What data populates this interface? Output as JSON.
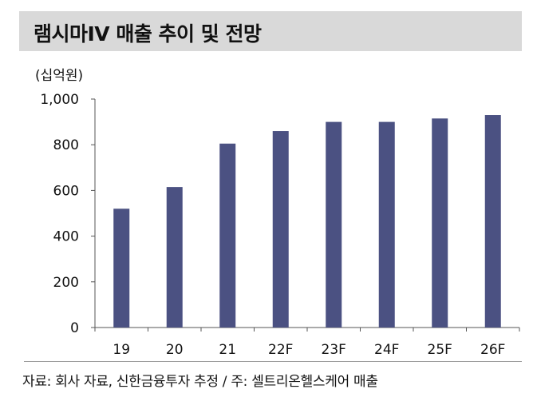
{
  "title": "램시마IV 매출 추이 및 전망",
  "unit_label": "(십억원)",
  "source": "자료: 회사 자료, 신한금융투자 추정 / 주: 셀트리온헬스케어 매출",
  "colors": {
    "bar": "#4b5182",
    "title_bg": "#d9d9d9",
    "axis": "#555555"
  },
  "chart_data": {
    "type": "bar",
    "categories": [
      "19",
      "20",
      "21",
      "22F",
      "23F",
      "24F",
      "25F",
      "26F"
    ],
    "values": [
      520,
      615,
      805,
      860,
      900,
      900,
      915,
      930
    ],
    "yticks": [
      "0",
      "200",
      "400",
      "600",
      "800",
      "1,000"
    ],
    "ylim": [
      0,
      1000
    ],
    "grid": false,
    "legend": "none"
  }
}
